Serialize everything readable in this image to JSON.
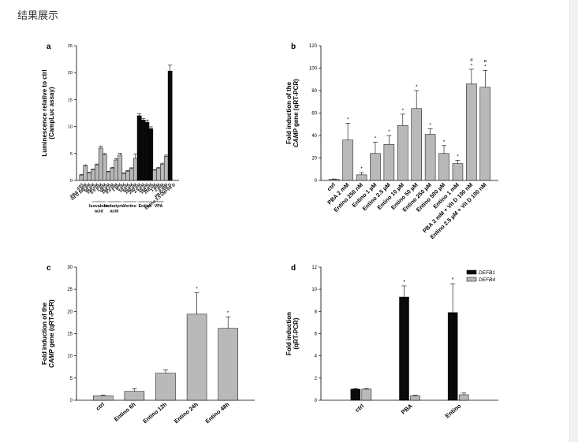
{
  "page": {
    "title": "结果展示"
  },
  "colors": {
    "gray_bar": "#b9b9b9",
    "black_bar": "#0a0a0a",
    "axis": "#000000"
  },
  "chart_data": [
    {
      "panel": "a",
      "type": "bar",
      "ylabel": [
        "Luminescence relative to ctrl",
        "(CampLuc assay)"
      ],
      "ylim": [
        0,
        25
      ],
      "yticks": [
        0,
        5,
        10,
        15,
        20,
        25
      ],
      "categories": [
        "ctrl",
        "PBA 2 mM",
        "Vit D 100 nM",
        "50 uM",
        "100 uM",
        "0.5 mM",
        "1 mM",
        "50 uM",
        "100 uM",
        "0.5 mM",
        "1 mM",
        "5 uM",
        "10 uM",
        "50 uM",
        "100 uM",
        "250 nM",
        "2.5 uM",
        "25 uM",
        "100 uM",
        "250 uM",
        "1 mM",
        "2 mM",
        "5 mM",
        "PBA+Vit D",
        "Entino 2.5 uM+Vit D"
      ],
      "values": [
        1,
        2.7,
        1.4,
        2,
        2.9,
        6,
        4.8,
        1.6,
        2.3,
        3.8,
        4.7,
        1.3,
        1.7,
        2.2,
        4.1,
        12,
        11.2,
        10.8,
        9.6,
        1.9,
        2.3,
        3,
        4.5,
        20.3,
        0
      ],
      "errors": [
        0.1,
        0.15,
        0.1,
        0.1,
        0.15,
        0.35,
        0.2,
        0.1,
        0.15,
        0.2,
        0.35,
        0.1,
        0.15,
        0.15,
        0.8,
        0.4,
        0.25,
        0.4,
        0.35,
        0.1,
        0.15,
        0.2,
        0.2,
        1.1,
        0
      ],
      "black_indices": [
        15,
        16,
        17,
        18,
        23
      ],
      "groups": [
        {
          "label": [
            "Isovaleric",
            "acid"
          ],
          "from": 3,
          "to": 6
        },
        {
          "label": [
            "Isobutyric",
            "acid"
          ],
          "from": 7,
          "to": 10
        },
        {
          "label": [
            "Vorino"
          ],
          "from": 11,
          "to": 14
        },
        {
          "label": [
            "Entino"
          ],
          "from": 15,
          "to": 18
        },
        {
          "label": [
            "VPA"
          ],
          "from": 19,
          "to": 21
        }
      ]
    },
    {
      "panel": "b",
      "type": "bar",
      "ylabel": [
        "Fold induction of the",
        "CAMP gene (qRT-PCR)"
      ],
      "ylim": [
        0,
        120
      ],
      "yticks": [
        0,
        20,
        40,
        60,
        80,
        100,
        120
      ],
      "categories": [
        "ctrl",
        "PBA 2 mM",
        "Entino 250 nM",
        "Entino 1 µM",
        "Entino 2.5 µM",
        "Entino 10 µM",
        "Entino 50 µM",
        "Entino 250 µM",
        "Entino 500 µM",
        "Entino 1 mM",
        "PBA 2 mM + Vit D 100 nM",
        "Entino 2.5 µM + Vit D 100 nM"
      ],
      "values": [
        1,
        36,
        5,
        24,
        32,
        49,
        64,
        41,
        24,
        15,
        86,
        83
      ],
      "errors": [
        0.3,
        15,
        2,
        10,
        8,
        10,
        16,
        5,
        7,
        3,
        13,
        15
      ],
      "marks": [
        "",
        "*",
        "*",
        "*",
        "*",
        "*",
        "*",
        "*",
        "*",
        "*",
        "# *",
        "¤ *"
      ]
    },
    {
      "panel": "c",
      "type": "bar",
      "ylabel": [
        "Fold induction of the",
        "CAMP gene (qRT-PCR)"
      ],
      "ylim": [
        0,
        30
      ],
      "yticks": [
        0,
        5,
        10,
        15,
        20,
        25,
        30
      ],
      "categories": [
        "ctrl",
        "Entino 6h",
        "Entino 12h",
        "Entino 24h",
        "Entino 48h"
      ],
      "values": [
        1,
        2,
        6.1,
        19.4,
        16.2
      ],
      "errors": [
        0.15,
        0.6,
        0.7,
        4.8,
        2.6
      ],
      "marks": [
        "",
        "",
        "",
        "*",
        "*"
      ]
    },
    {
      "panel": "d",
      "type": "bar",
      "ylabel": [
        "Fold induction",
        "(qRT-PCR)"
      ],
      "ylim": [
        0,
        12
      ],
      "yticks": [
        0,
        2,
        4,
        6,
        8,
        10,
        12
      ],
      "categories": [
        "ctrl",
        "PBA",
        "Entino"
      ],
      "series": [
        {
          "name": "DEFB1",
          "color": "#0a0a0a",
          "values": [
            1,
            9.3,
            7.9
          ],
          "errors": [
            0.05,
            1,
            2.6
          ],
          "marks": [
            "",
            "*",
            "*"
          ]
        },
        {
          "name": "DEFB4",
          "color": "#b9b9b9",
          "values": [
            1,
            0.4,
            0.5
          ],
          "errors": [
            0.05,
            0.05,
            0.15
          ],
          "marks": [
            "",
            "",
            ""
          ]
        }
      ],
      "legend": "top-right"
    }
  ]
}
